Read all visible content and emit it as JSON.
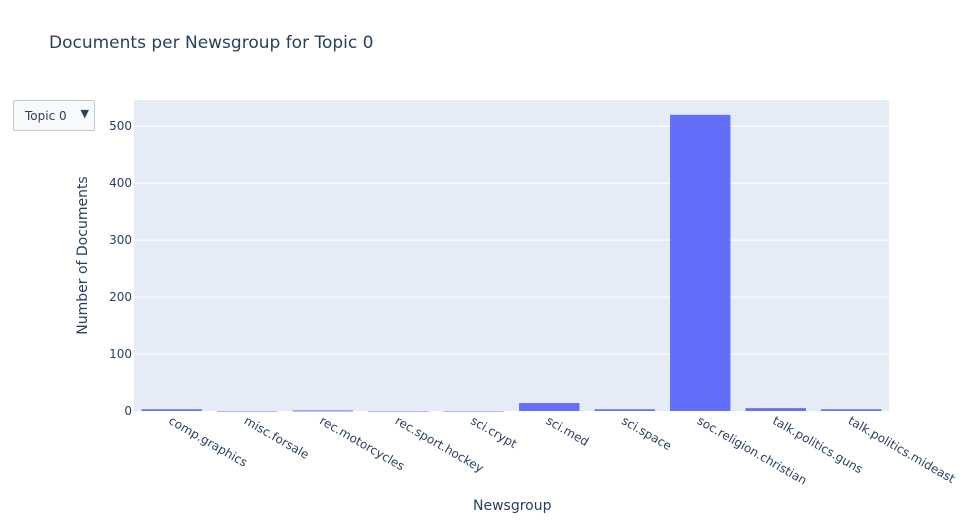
{
  "dropdown": {
    "selected": "Topic 0"
  },
  "colors": {
    "bar": "#636efa",
    "plot_bg": "#e5ecf6",
    "grid": "#ffffff",
    "text": "#2a3f5f"
  },
  "chart_data": {
    "type": "bar",
    "title": "Documents per Newsgroup for Topic 0",
    "xlabel": "Newsgroup",
    "ylabel": "Number of Documents",
    "categories": [
      "comp.graphics",
      "misc.forsale",
      "rec.motorcycles",
      "rec.sport.hockey",
      "sci.crypt",
      "sci.med",
      "sci.space",
      "soc.religion.christian",
      "talk.politics.guns",
      "talk.politics.mideast"
    ],
    "values": [
      3,
      0,
      1,
      0,
      0,
      14,
      3,
      520,
      5,
      3
    ],
    "ylim": [
      0,
      546
    ],
    "yticks": [
      0,
      100,
      200,
      300,
      400,
      500
    ],
    "grid": true,
    "legend": "none"
  }
}
